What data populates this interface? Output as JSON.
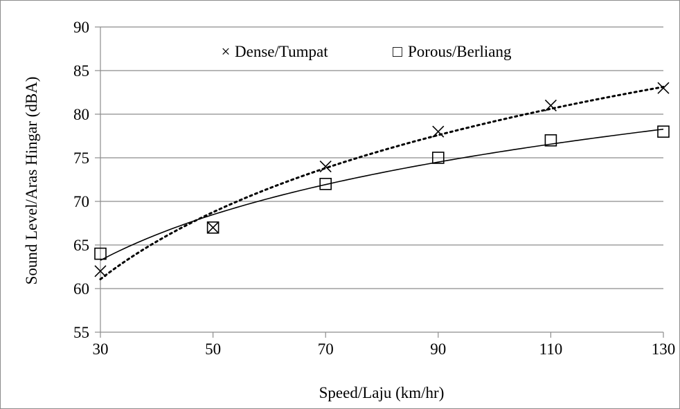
{
  "chart_data": {
    "type": "scatter",
    "title": "",
    "xlabel": "Speed/Laju (km/hr)",
    "ylabel": "Sound Level/Aras Hingar (dBA)",
    "xlim": [
      30,
      130
    ],
    "ylim": [
      55,
      90
    ],
    "x_ticks": [
      30,
      50,
      70,
      90,
      110,
      130
    ],
    "y_ticks": [
      55,
      60,
      65,
      70,
      75,
      80,
      85,
      90
    ],
    "x_tick_labels": [
      "30",
      "50",
      "70",
      "90",
      "110",
      "130"
    ],
    "y_tick_labels": [
      "55",
      "60",
      "65",
      "70",
      "75",
      "80",
      "85",
      "90"
    ],
    "grid": "horizontal",
    "legend_placement": "top",
    "series": [
      {
        "name": "Dense/Tumpat",
        "marker": "x",
        "trendline": "dotted",
        "legend_label": "Dense/Tumpat",
        "legend_symbol": "×",
        "x": [
          30,
          50,
          70,
          90,
          110,
          130
        ],
        "y": [
          62,
          67,
          74,
          78,
          81,
          83
        ]
      },
      {
        "name": "Porous/Berliang",
        "marker": "square",
        "trendline": "solid",
        "legend_label": "Porous/Berliang",
        "legend_symbol": "□",
        "x": [
          30,
          50,
          70,
          90,
          110,
          130
        ],
        "y": [
          64,
          67,
          72,
          75,
          77,
          78
        ]
      }
    ]
  },
  "colors": {
    "background": "#ffffff",
    "grid": "#8c8c8c",
    "axis": "#8c8c8c",
    "frame": "#8c8c8c",
    "series": "#000000"
  }
}
